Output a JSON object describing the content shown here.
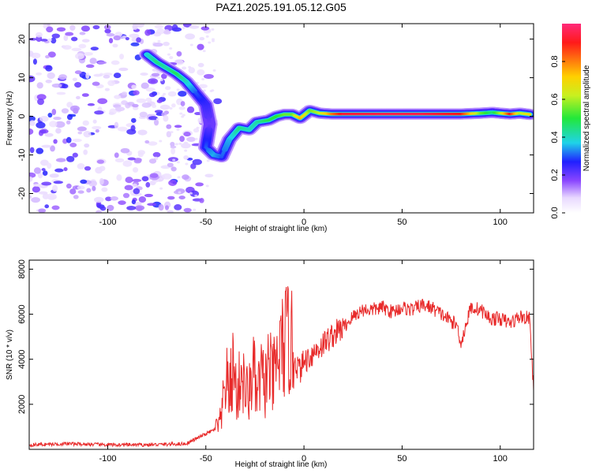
{
  "title": "PAZ1.2025.191.05.12.G05",
  "colors": {
    "track_ridge": "#ff2a5a",
    "snr_line": "#e82a2a",
    "noise": "#8a46ff"
  },
  "chart_data": [
    {
      "type": "heatmap",
      "title": "PAZ1.2025.191.05.12.G05",
      "xlabel": "Height of straight line (km)",
      "ylabel": "Frequency (Hz)",
      "xlim": [
        -140,
        117
      ],
      "ylim": [
        -25,
        24
      ],
      "x_ticks": [
        -100,
        -50,
        0,
        50,
        100
      ],
      "x_tick_labels": [
        "-100",
        "-50",
        "0",
        "50",
        "100"
      ],
      "y_ticks": [
        -20,
        -10,
        0,
        10,
        20
      ],
      "y_tick_labels": [
        "-20",
        "-10",
        "0",
        "10",
        "20"
      ],
      "colorbar": {
        "label": "Normalized spectral amplitude",
        "range": [
          0,
          1
        ],
        "ticks": [
          0,
          0.2,
          0.4,
          0.6,
          0.8
        ],
        "tick_labels": [
          "0.0",
          "0.2",
          "0.4",
          "0.6",
          "0.8"
        ],
        "colormap": "rainbow (white→violet→blue→cyan→green→yellow→red→magenta)"
      },
      "noise_region_x": [
        -140,
        -60
      ],
      "ridge": [
        {
          "x": -80,
          "f": 16,
          "a": 0.38
        },
        {
          "x": -75,
          "f": 14,
          "a": 0.45
        },
        {
          "x": -70,
          "f": 12.5,
          "a": 0.42
        },
        {
          "x": -65,
          "f": 11,
          "a": 0.48
        },
        {
          "x": -60,
          "f": 9,
          "a": 0.4
        },
        {
          "x": -55,
          "f": 6,
          "a": 0.3
        },
        {
          "x": -50,
          "f": 3,
          "a": 0.25
        },
        {
          "x": -48,
          "f": -2,
          "a": 0.2
        },
        {
          "x": -50,
          "f": -8,
          "a": 0.3
        },
        {
          "x": -46,
          "f": -10,
          "a": 0.35
        },
        {
          "x": -42,
          "f": -10.5,
          "a": 0.3
        },
        {
          "x": -38,
          "f": -6,
          "a": 0.35
        },
        {
          "x": -33,
          "f": -3,
          "a": 0.45
        },
        {
          "x": -28,
          "f": -3.5,
          "a": 0.4
        },
        {
          "x": -24,
          "f": -1.5,
          "a": 0.42
        },
        {
          "x": -18,
          "f": -1,
          "a": 0.48
        },
        {
          "x": -14,
          "f": 0,
          "a": 0.5
        },
        {
          "x": -10,
          "f": 0.5,
          "a": 0.55
        },
        {
          "x": -6,
          "f": 0.5,
          "a": 0.55
        },
        {
          "x": -2,
          "f": -0.5,
          "a": 0.75
        },
        {
          "x": 3,
          "f": 1.5,
          "a": 0.55
        },
        {
          "x": 8,
          "f": 0.8,
          "a": 0.62
        },
        {
          "x": 14,
          "f": 0.6,
          "a": 0.8
        },
        {
          "x": 20,
          "f": 0.6,
          "a": 0.93
        },
        {
          "x": 40,
          "f": 0.6,
          "a": 0.95
        },
        {
          "x": 60,
          "f": 0.6,
          "a": 0.95
        },
        {
          "x": 80,
          "f": 0.6,
          "a": 0.9
        },
        {
          "x": 90,
          "f": 0.8,
          "a": 0.55
        },
        {
          "x": 96,
          "f": 1,
          "a": 0.45
        },
        {
          "x": 100,
          "f": 0.8,
          "a": 0.6
        },
        {
          "x": 105,
          "f": 0.6,
          "a": 0.9
        },
        {
          "x": 110,
          "f": 0.8,
          "a": 0.6
        },
        {
          "x": 115,
          "f": 0.5,
          "a": 0.7
        }
      ]
    },
    {
      "type": "line",
      "xlabel": "Height of straight line (km)",
      "ylabel": "SNR (10 * v/v)",
      "xlim": [
        -140,
        117
      ],
      "ylim": [
        0,
        8400
      ],
      "x_ticks": [
        -100,
        -50,
        0,
        50,
        100
      ],
      "x_tick_labels": [
        "-100",
        "-50",
        "0",
        "50",
        "100"
      ],
      "y_ticks": [
        2000,
        4000,
        6000,
        8000
      ],
      "y_tick_labels": [
        "2000",
        "4000",
        "6000",
        "8000"
      ],
      "series": [
        {
          "color": "#e82a2a",
          "x": [
            -140,
            -120,
            -100,
            -80,
            -60,
            -52,
            -45,
            -42,
            -40,
            -38,
            -36,
            -34,
            -32,
            -30,
            -28,
            -26,
            -24,
            -22,
            -20,
            -18,
            -16,
            -14,
            -12,
            -10,
            -8,
            -6,
            -4,
            -2,
            0,
            5,
            10,
            15,
            20,
            25,
            30,
            35,
            40,
            45,
            50,
            55,
            60,
            65,
            70,
            75,
            78,
            80,
            85,
            90,
            95,
            100,
            105,
            110,
            115,
            117
          ],
          "y": [
            200,
            250,
            200,
            200,
            250,
            600,
            900,
            1300,
            3200,
            2500,
            3700,
            2200,
            3500,
            2600,
            2400,
            3700,
            2200,
            3300,
            2800,
            3700,
            3000,
            3700,
            4300,
            4700,
            4900,
            4500,
            3800,
            3500,
            3900,
            4300,
            4700,
            5100,
            5400,
            5900,
            6200,
            6200,
            6300,
            6100,
            6300,
            6200,
            6400,
            6300,
            6000,
            5700,
            5500,
            4700,
            6300,
            6200,
            5800,
            5800,
            5600,
            5900,
            5800,
            2600
          ]
        }
      ]
    }
  ]
}
